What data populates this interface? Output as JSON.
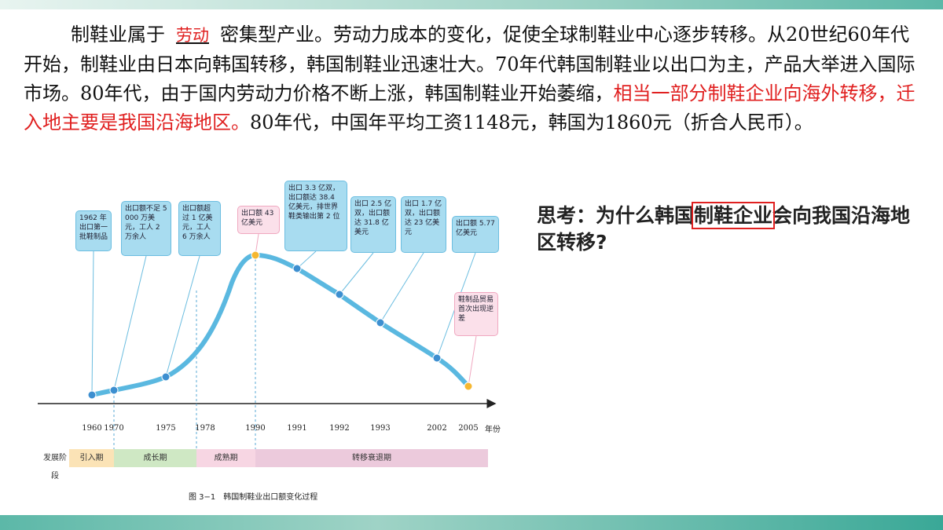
{
  "paragraph": {
    "lead": "制鞋业属于",
    "blank": "劳动",
    "body": "密集型产业。劳动力成本的变化，促使全球制鞋业中心逐步转移。从20世纪60年代开始，制鞋业由日本向韩国转移，韩国制鞋业迅速壮大。70年代韩国制鞋业以出口为主，产品大举进入国际市场。80年代，由于国内劳动力价格不断上涨，韩国制鞋业开始萎缩，",
    "highlight": "相当一部分制鞋企业向海外转移，迁入地主要是我国沿海地区。",
    "tail": "80年代，中国年平均工资1148元，韩国为1860元（折合人民币）。"
  },
  "figure": {
    "years": [
      "1960",
      "1970",
      "1975",
      "1978",
      "1990",
      "1991",
      "1992",
      "1993",
      "2002",
      "2005"
    ],
    "axis_unit": "年份",
    "callouts": [
      "1962 年出口第一批鞋制品",
      "出口额不足 5 000 万美元，工人 2 万余人",
      "出口额超过 1 亿美元，工人 6 万余人",
      "出口额 43 亿美元",
      "出口 3.3 亿双，出口额达 38.4 亿美元，排世界鞋类输出第 2 位",
      "出口 2.5 亿双，出口额达 31.8 亿美元",
      "出口 1.7 亿双，出口额达 23 亿美元",
      "出口额 5.77 亿美元",
      "鞋制品贸易首次出现逆差"
    ],
    "stage_label": "发展阶段",
    "stages": [
      "引入期",
      "成长期",
      "成熟期",
      "转移衰退期"
    ],
    "caption": "图 3−1　韩国制鞋业出口额变化过程"
  },
  "question": {
    "lead": "思考：为什么韩国",
    "boxed": "制鞋企业",
    "rest": "会向我国沿海地区转移?"
  }
}
